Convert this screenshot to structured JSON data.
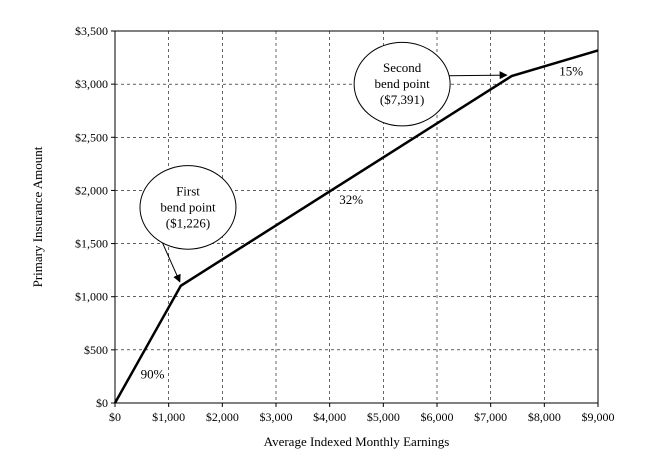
{
  "chart_data": {
    "type": "line",
    "xlabel": "Average Indexed Monthly Earnings",
    "ylabel": "Primary Insurance Amount",
    "xlim": [
      0,
      9000
    ],
    "ylim": [
      0,
      3500
    ],
    "x_ticks": [
      0,
      1000,
      2000,
      3000,
      4000,
      5000,
      6000,
      7000,
      8000,
      9000
    ],
    "y_ticks": [
      0,
      500,
      1000,
      1500,
      2000,
      2500,
      3000,
      3500
    ],
    "x_tick_labels": [
      "$0",
      "$1,000",
      "$2,000",
      "$3,000",
      "$4,000",
      "$5,000",
      "$6,000",
      "$7,000",
      "$8,000",
      "$9,000"
    ],
    "y_tick_labels": [
      "$0",
      "$500",
      "$1,000",
      "$1,500",
      "$2,000",
      "$2,500",
      "$3,000",
      "$3,500"
    ],
    "grid": true,
    "series": [
      {
        "x": [
          0,
          1226,
          7391,
          9000
        ],
        "y": [
          0,
          1103,
          3076,
          3317
        ]
      }
    ],
    "segment_labels": [
      {
        "text": "90%",
        "x": 700,
        "y": 230
      },
      {
        "text": "32%",
        "x": 4400,
        "y": 1870
      },
      {
        "text": "15%",
        "x": 8500,
        "y": 3080
      }
    ],
    "callouts": [
      {
        "lines": [
          "First",
          "bend point",
          "($1,226)"
        ],
        "target": {
          "x": 1226,
          "y": 1103
        },
        "center": {
          "x": 1360,
          "y": 1840
        },
        "rx_data": 1230,
        "ry_data": 560
      },
      {
        "lines": [
          "Second",
          "bend point",
          "($7,391)"
        ],
        "target": {
          "x": 7391,
          "y": 3076
        },
        "center": {
          "x": 5350,
          "y": 3000
        },
        "rx_data": 1230,
        "ry_data": 560
      }
    ]
  }
}
